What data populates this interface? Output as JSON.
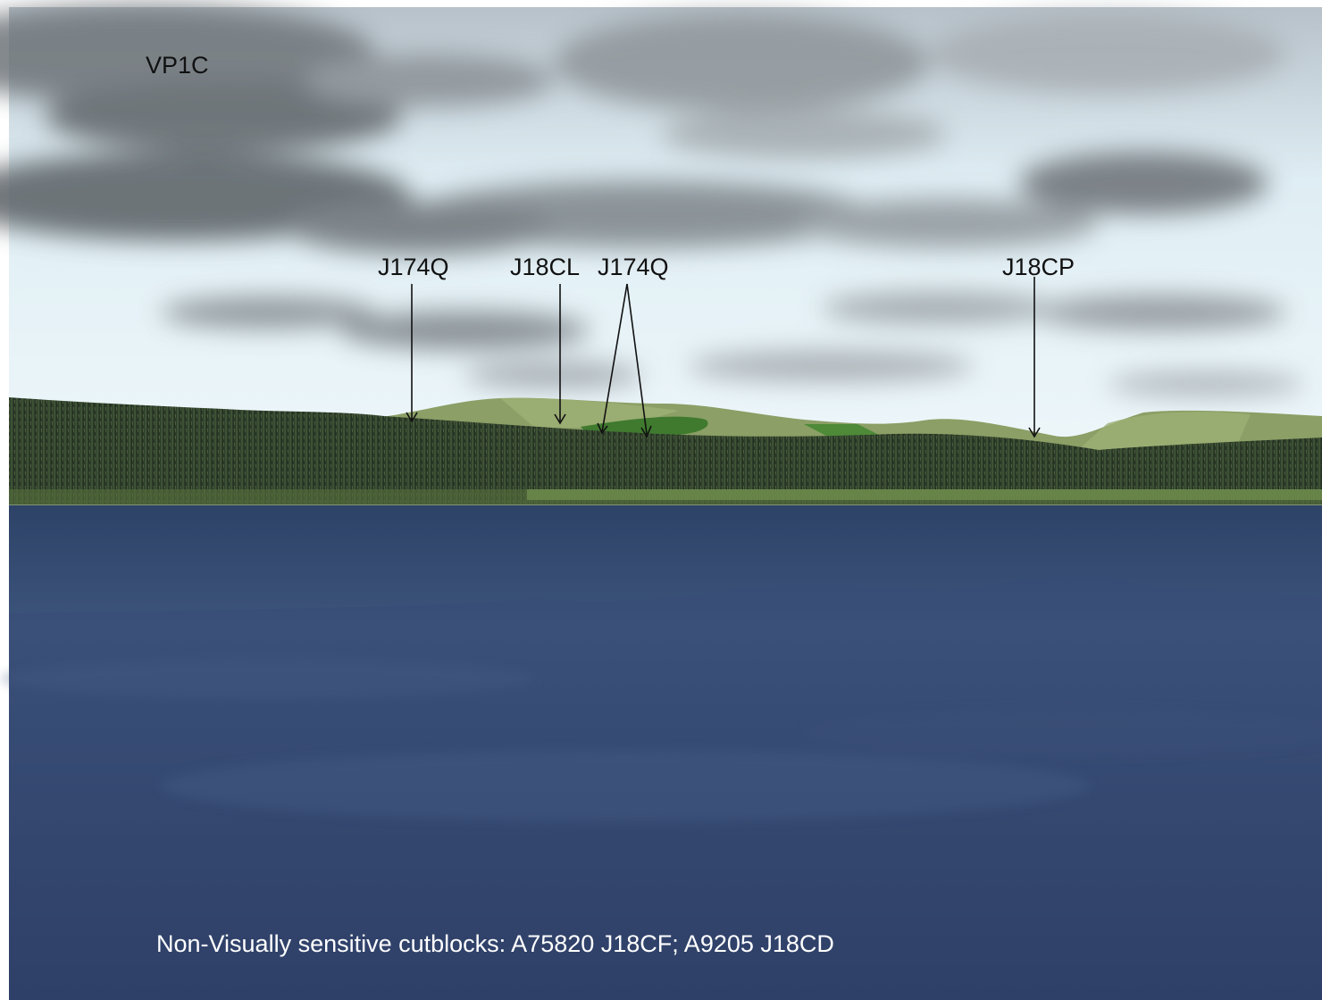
{
  "viewpoint": {
    "label": "VP1C"
  },
  "cutblock_labels": [
    {
      "text": "J174Q"
    },
    {
      "text": "J18CL"
    },
    {
      "text": "J174Q"
    },
    {
      "text": "J18CP"
    }
  ],
  "footer": {
    "note": "Non-Visually sensitive cutblocks: A75820 J18CF;  A9205 J18CD"
  },
  "colors": {
    "sky_top": "#9aa3ad",
    "sky_bright": "#eaf6fb",
    "forest": "#2c3b2a",
    "hills": "#8a9e64",
    "water": "#2f4268",
    "label": "#111111",
    "note": "#ffffff"
  }
}
